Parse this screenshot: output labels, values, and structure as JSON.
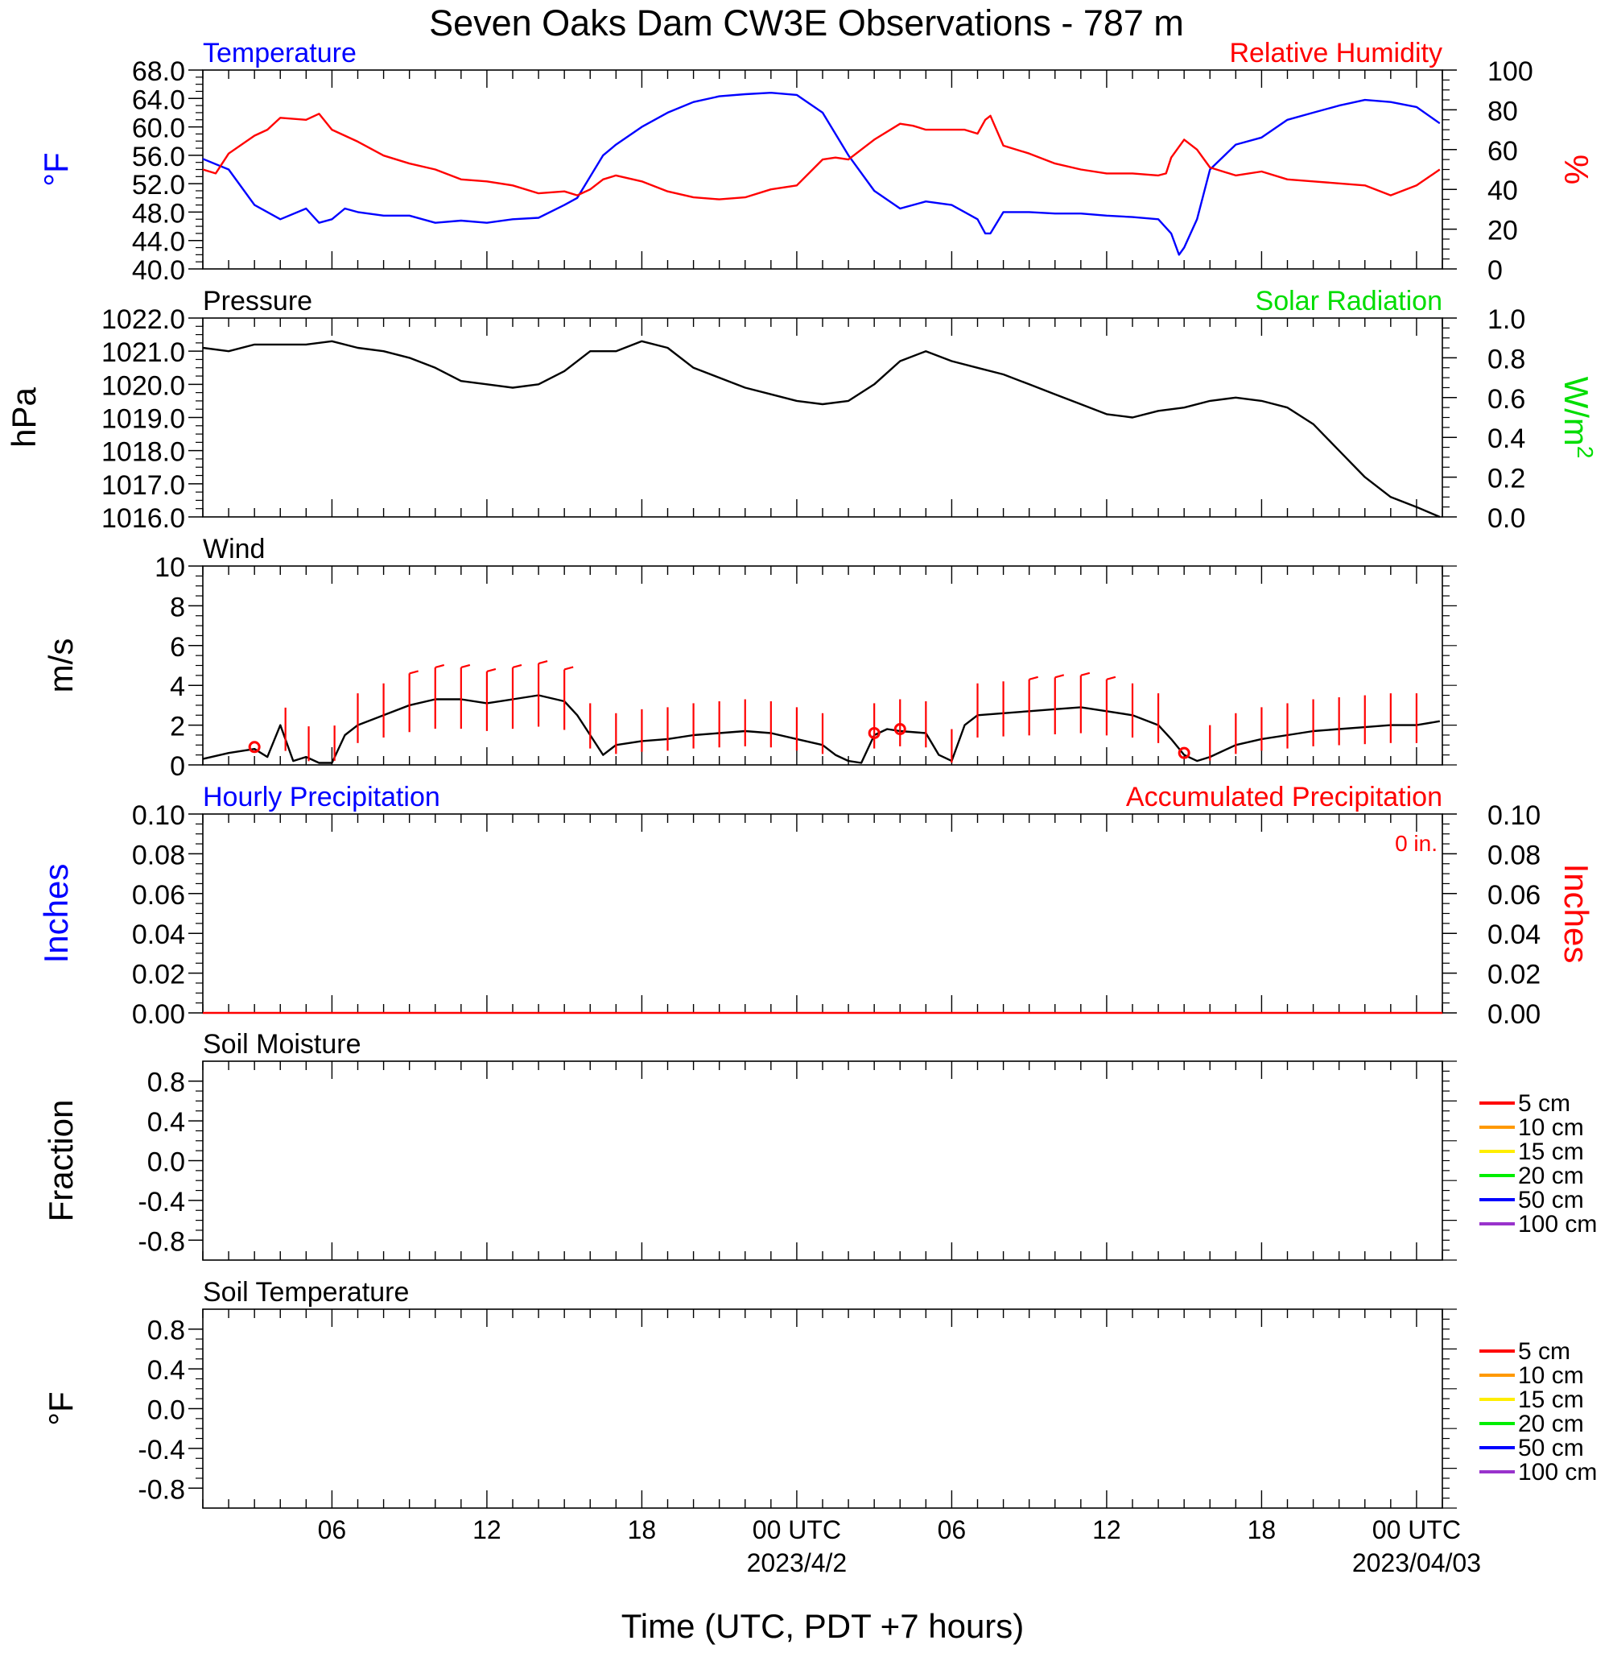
{
  "title": "Seven Oaks Dam CW3E Observations - 787 m",
  "colors": {
    "temperature": "#0000ff",
    "humidity": "#ff0000",
    "pressure": "#000000",
    "solar": "#00dd00",
    "wind": "#000000",
    "wind_barb": "#ff0000",
    "precip_hourly": "#0000ff",
    "precip_accum": "#ff0000"
  },
  "x_axis": {
    "label": "Time (UTC, PDT +7 hours)",
    "ticks": [
      {
        "hour": 6,
        "label": "06"
      },
      {
        "hour": 12,
        "label": "12"
      },
      {
        "hour": 18,
        "label": "18"
      },
      {
        "hour": 24,
        "label": "00 UTC"
      },
      {
        "hour": 30,
        "label": "06"
      },
      {
        "hour": 36,
        "label": "12"
      },
      {
        "hour": 42,
        "label": "18"
      },
      {
        "hour": 48,
        "label": "00 UTC"
      }
    ],
    "dates": [
      {
        "hour": 24,
        "label": "2023/4/2"
      },
      {
        "hour": 48,
        "label": "2023/04/03"
      }
    ],
    "range_hours": [
      1,
      49
    ]
  },
  "chart_data": [
    {
      "type": "line",
      "panel": "temperature-humidity",
      "title_left": "Temperature",
      "title_right": "Relative Humidity",
      "ylabel_left": "°F",
      "ylabel_right": "%",
      "ylim_left": [
        40,
        68
      ],
      "ylim_right": [
        0,
        100
      ],
      "yticks_left": [
        "68.0",
        "64.0",
        "60.0",
        "56.0",
        "52.0",
        "48.0",
        "44.0",
        "40.0"
      ],
      "yticks_right": [
        "100",
        "80",
        "60",
        "40",
        "20",
        "0"
      ],
      "series": [
        {
          "name": "Temperature",
          "axis": "left",
          "x": [
            1,
            2,
            3,
            4,
            5,
            5.5,
            6,
            6.5,
            7,
            8,
            9,
            10,
            11,
            12,
            13,
            14,
            15,
            15.5,
            16,
            16.5,
            17,
            18,
            19,
            20,
            21,
            22,
            23,
            24,
            25,
            26,
            27,
            28,
            29,
            30,
            30.5,
            31,
            31.3,
            31.5,
            32,
            33,
            34,
            35,
            36,
            37,
            38,
            38.5,
            38.8,
            39,
            39.5,
            40,
            41,
            42,
            43,
            44,
            45,
            46,
            47,
            48,
            48.9
          ],
          "y": [
            55.5,
            54,
            49,
            47,
            48.5,
            46.5,
            47,
            48.5,
            48,
            47.5,
            47.5,
            46.5,
            46.8,
            46.5,
            47,
            47.2,
            49,
            50,
            53,
            56,
            57.5,
            60,
            62,
            63.5,
            64.3,
            64.6,
            64.8,
            64.5,
            62,
            56,
            51,
            48.5,
            49.5,
            49,
            48,
            47,
            45,
            45,
            48,
            48,
            47.8,
            47.8,
            47.5,
            47.3,
            47,
            45,
            42,
            43,
            47,
            54,
            57.5,
            58.5,
            61,
            62,
            63,
            63.8,
            63.5,
            62.8,
            60.5
          ]
        },
        {
          "name": "Relative Humidity",
          "axis": "right",
          "x": [
            1,
            1.5,
            2,
            3,
            3.5,
            4,
            5,
            5.5,
            6,
            7,
            8,
            9,
            10,
            11,
            12,
            13,
            14,
            15,
            15.5,
            16,
            16.5,
            17,
            18,
            19,
            20,
            21,
            22,
            23,
            24,
            25,
            25.5,
            26,
            27,
            28,
            28.5,
            29,
            30,
            30.5,
            31,
            31.3,
            31.5,
            32,
            33,
            34,
            35,
            36,
            37,
            38,
            38.3,
            38.5,
            39,
            39.5,
            40,
            41,
            42,
            43,
            44,
            45,
            46,
            47,
            48,
            48.9
          ],
          "y": [
            50,
            48,
            58,
            67,
            70,
            76,
            75,
            78,
            70,
            64,
            57,
            53,
            50,
            45,
            44,
            42,
            38,
            39,
            37,
            40,
            45,
            47,
            44,
            39,
            36,
            35,
            36,
            40,
            42,
            55,
            56,
            55,
            65,
            73,
            72,
            70,
            70,
            70,
            68,
            75,
            77,
            62,
            58,
            53,
            50,
            48,
            48,
            47,
            48,
            56,
            65,
            60,
            51,
            47,
            49,
            45,
            44,
            43,
            42,
            37,
            42,
            50
          ]
        }
      ]
    },
    {
      "type": "line",
      "panel": "pressure-solar",
      "title_left": "Pressure",
      "title_right": "Solar Radiation",
      "ylabel_left": "hPa",
      "ylabel_right": "W/m",
      "ylabel_right_sup": "2",
      "ylim_left": [
        1016,
        1022
      ],
      "ylim_right": [
        0,
        1
      ],
      "yticks_left": [
        "1022.0",
        "1021.0",
        "1020.0",
        "1019.0",
        "1018.0",
        "1017.0",
        "1016.0"
      ],
      "yticks_right": [
        "1.0",
        "0.8",
        "0.6",
        "0.4",
        "0.2",
        "0.0"
      ],
      "series": [
        {
          "name": "Pressure",
          "axis": "left",
          "x": [
            1,
            2,
            3,
            4,
            5,
            6,
            7,
            8,
            9,
            10,
            11,
            12,
            13,
            14,
            15,
            16,
            17,
            18,
            19,
            20,
            21,
            22,
            23,
            24,
            25,
            26,
            27,
            28,
            29,
            30,
            31,
            32,
            33,
            34,
            35,
            36,
            37,
            38,
            39,
            40,
            41,
            42,
            43,
            44,
            45,
            46,
            47,
            48,
            48.9
          ],
          "y": [
            1021.1,
            1021.0,
            1021.2,
            1021.2,
            1021.2,
            1021.3,
            1021.1,
            1021.0,
            1020.8,
            1020.5,
            1020.1,
            1020.0,
            1019.9,
            1020.0,
            1020.4,
            1021.0,
            1021.0,
            1021.3,
            1021.1,
            1020.5,
            1020.2,
            1019.9,
            1019.7,
            1019.5,
            1019.4,
            1019.5,
            1020.0,
            1020.7,
            1021.0,
            1020.7,
            1020.5,
            1020.3,
            1020.0,
            1019.7,
            1019.4,
            1019.1,
            1019.0,
            1019.2,
            1019.3,
            1019.5,
            1019.6,
            1019.5,
            1019.3,
            1018.8,
            1018.0,
            1017.2,
            1016.6,
            1016.3,
            1016.0
          ]
        }
      ]
    },
    {
      "type": "line",
      "panel": "wind",
      "title_left": "Wind",
      "ylabel_left": "m/s",
      "ylim_left": [
        0,
        10
      ],
      "yticks_left": [
        "10",
        "8",
        "6",
        "4",
        "2",
        "0"
      ],
      "series": [
        {
          "name": "Wind",
          "axis": "left",
          "x": [
            1,
            2,
            3,
            3.5,
            4,
            4.5,
            5,
            5.5,
            6,
            6.5,
            7,
            8,
            9,
            10,
            11,
            12,
            13,
            14,
            15,
            15.5,
            16,
            16.5,
            17,
            18,
            19,
            20,
            21,
            22,
            23,
            24,
            25,
            25.5,
            26,
            26.5,
            27,
            27.5,
            28,
            29,
            29.5,
            30,
            30.5,
            31,
            32,
            33,
            34,
            35,
            36,
            37,
            38,
            38.5,
            39,
            39.5,
            40,
            41,
            42,
            43,
            44,
            45,
            46,
            47,
            48,
            48.9
          ],
          "y": [
            0.3,
            0.6,
            0.8,
            0.4,
            2.0,
            0.2,
            0.4,
            0.1,
            0.1,
            1.5,
            2.0,
            2.5,
            3.0,
            3.3,
            3.3,
            3.1,
            3.3,
            3.5,
            3.2,
            2.5,
            1.5,
            0.5,
            1.0,
            1.2,
            1.3,
            1.5,
            1.6,
            1.7,
            1.6,
            1.3,
            1.0,
            0.5,
            0.2,
            0.1,
            1.5,
            1.8,
            1.7,
            1.6,
            0.5,
            0.2,
            2.0,
            2.5,
            2.6,
            2.7,
            2.8,
            2.9,
            2.7,
            2.5,
            2.0,
            1.3,
            0.5,
            0.2,
            0.4,
            1.0,
            1.3,
            1.5,
            1.7,
            1.8,
            1.9,
            2.0,
            2.0,
            2.2
          ]
        }
      ],
      "barb_hours": [
        4.2,
        5.1,
        6.1,
        7.0,
        8.0,
        9.0,
        10.0,
        11.0,
        12.0,
        13.0,
        14.0,
        15.0,
        16.0,
        17.0,
        18.0,
        19.0,
        20.0,
        21.0,
        22.0,
        23.0,
        24.0,
        25.0,
        27.0,
        28.0,
        29.0,
        30.0,
        31.0,
        32.0,
        33.0,
        34.0,
        35.0,
        36.0,
        37.0,
        38.0,
        40.0,
        41.0,
        42.0,
        43.0,
        44.0,
        45.0,
        46.0,
        47.0,
        48.0
      ],
      "calm_hours": [
        3.0,
        27.0,
        28.0,
        39.0
      ]
    },
    {
      "type": "line",
      "panel": "precipitation",
      "title_left": "Hourly Precipitation",
      "title_right": "Accumulated Precipitation",
      "annotation": "0 in.",
      "ylabel_left": "Inches",
      "ylabel_right": "Inches",
      "ylim_left": [
        0,
        0.1
      ],
      "ylim_right": [
        0,
        0.1
      ],
      "yticks_left": [
        "0.10",
        "0.08",
        "0.06",
        "0.04",
        "0.02",
        "0.00"
      ],
      "yticks_right": [
        "0.10",
        "0.08",
        "0.06",
        "0.04",
        "0.02",
        "0.00"
      ],
      "series": [
        {
          "name": "Accumulated Precipitation",
          "axis": "right",
          "x": [
            1,
            49
          ],
          "y": [
            0,
            0
          ]
        }
      ]
    },
    {
      "type": "line",
      "panel": "soil-moisture",
      "title_left": "Soil Moisture",
      "ylabel_left": "Fraction",
      "ylim_left": [
        -1,
        1
      ],
      "yticks_left": [
        "0.8",
        "0.4",
        "0.0",
        "-0.4",
        "-0.8"
      ],
      "legend": [
        {
          "label": "5 cm",
          "color": "#ff0000"
        },
        {
          "label": "10 cm",
          "color": "#ff9900"
        },
        {
          "label": "15 cm",
          "color": "#ffee00"
        },
        {
          "label": "20 cm",
          "color": "#00ee00"
        },
        {
          "label": "50 cm",
          "color": "#0000ff"
        },
        {
          "label": "100 cm",
          "color": "#9933cc"
        }
      ]
    },
    {
      "type": "line",
      "panel": "soil-temperature",
      "title_left": "Soil Temperature",
      "ylabel_left": "°F",
      "ylim_left": [
        -1,
        1
      ],
      "yticks_left": [
        "0.8",
        "0.4",
        "0.0",
        "-0.4",
        "-0.8"
      ],
      "legend": [
        {
          "label": "5 cm",
          "color": "#ff0000"
        },
        {
          "label": "10 cm",
          "color": "#ff9900"
        },
        {
          "label": "15 cm",
          "color": "#ffee00"
        },
        {
          "label": "20 cm",
          "color": "#00ee00"
        },
        {
          "label": "50 cm",
          "color": "#0000ff"
        },
        {
          "label": "100 cm",
          "color": "#9933cc"
        }
      ]
    }
  ]
}
